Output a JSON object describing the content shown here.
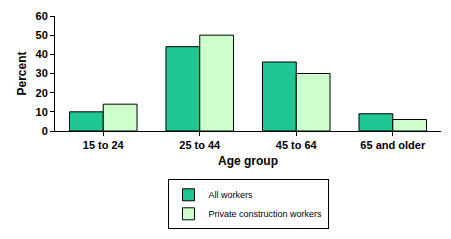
{
  "chart_data": {
    "type": "bar",
    "categories": [
      "15 to 24",
      "25 to 44",
      "45 to 64",
      "65 and older"
    ],
    "series": [
      {
        "name": "All workers",
        "color": "#1fc795",
        "values": [
          10,
          44,
          36,
          9
        ]
      },
      {
        "name": "Private construction workers",
        "color": "#ccffcc",
        "values": [
          14,
          50,
          30,
          6
        ]
      }
    ],
    "x_label": "Age group",
    "y_label": "Percent",
    "ylim": [
      0,
      60
    ],
    "yticks": [
      0,
      10,
      20,
      30,
      40,
      50,
      60
    ],
    "grid": false,
    "legend": "bottom"
  }
}
